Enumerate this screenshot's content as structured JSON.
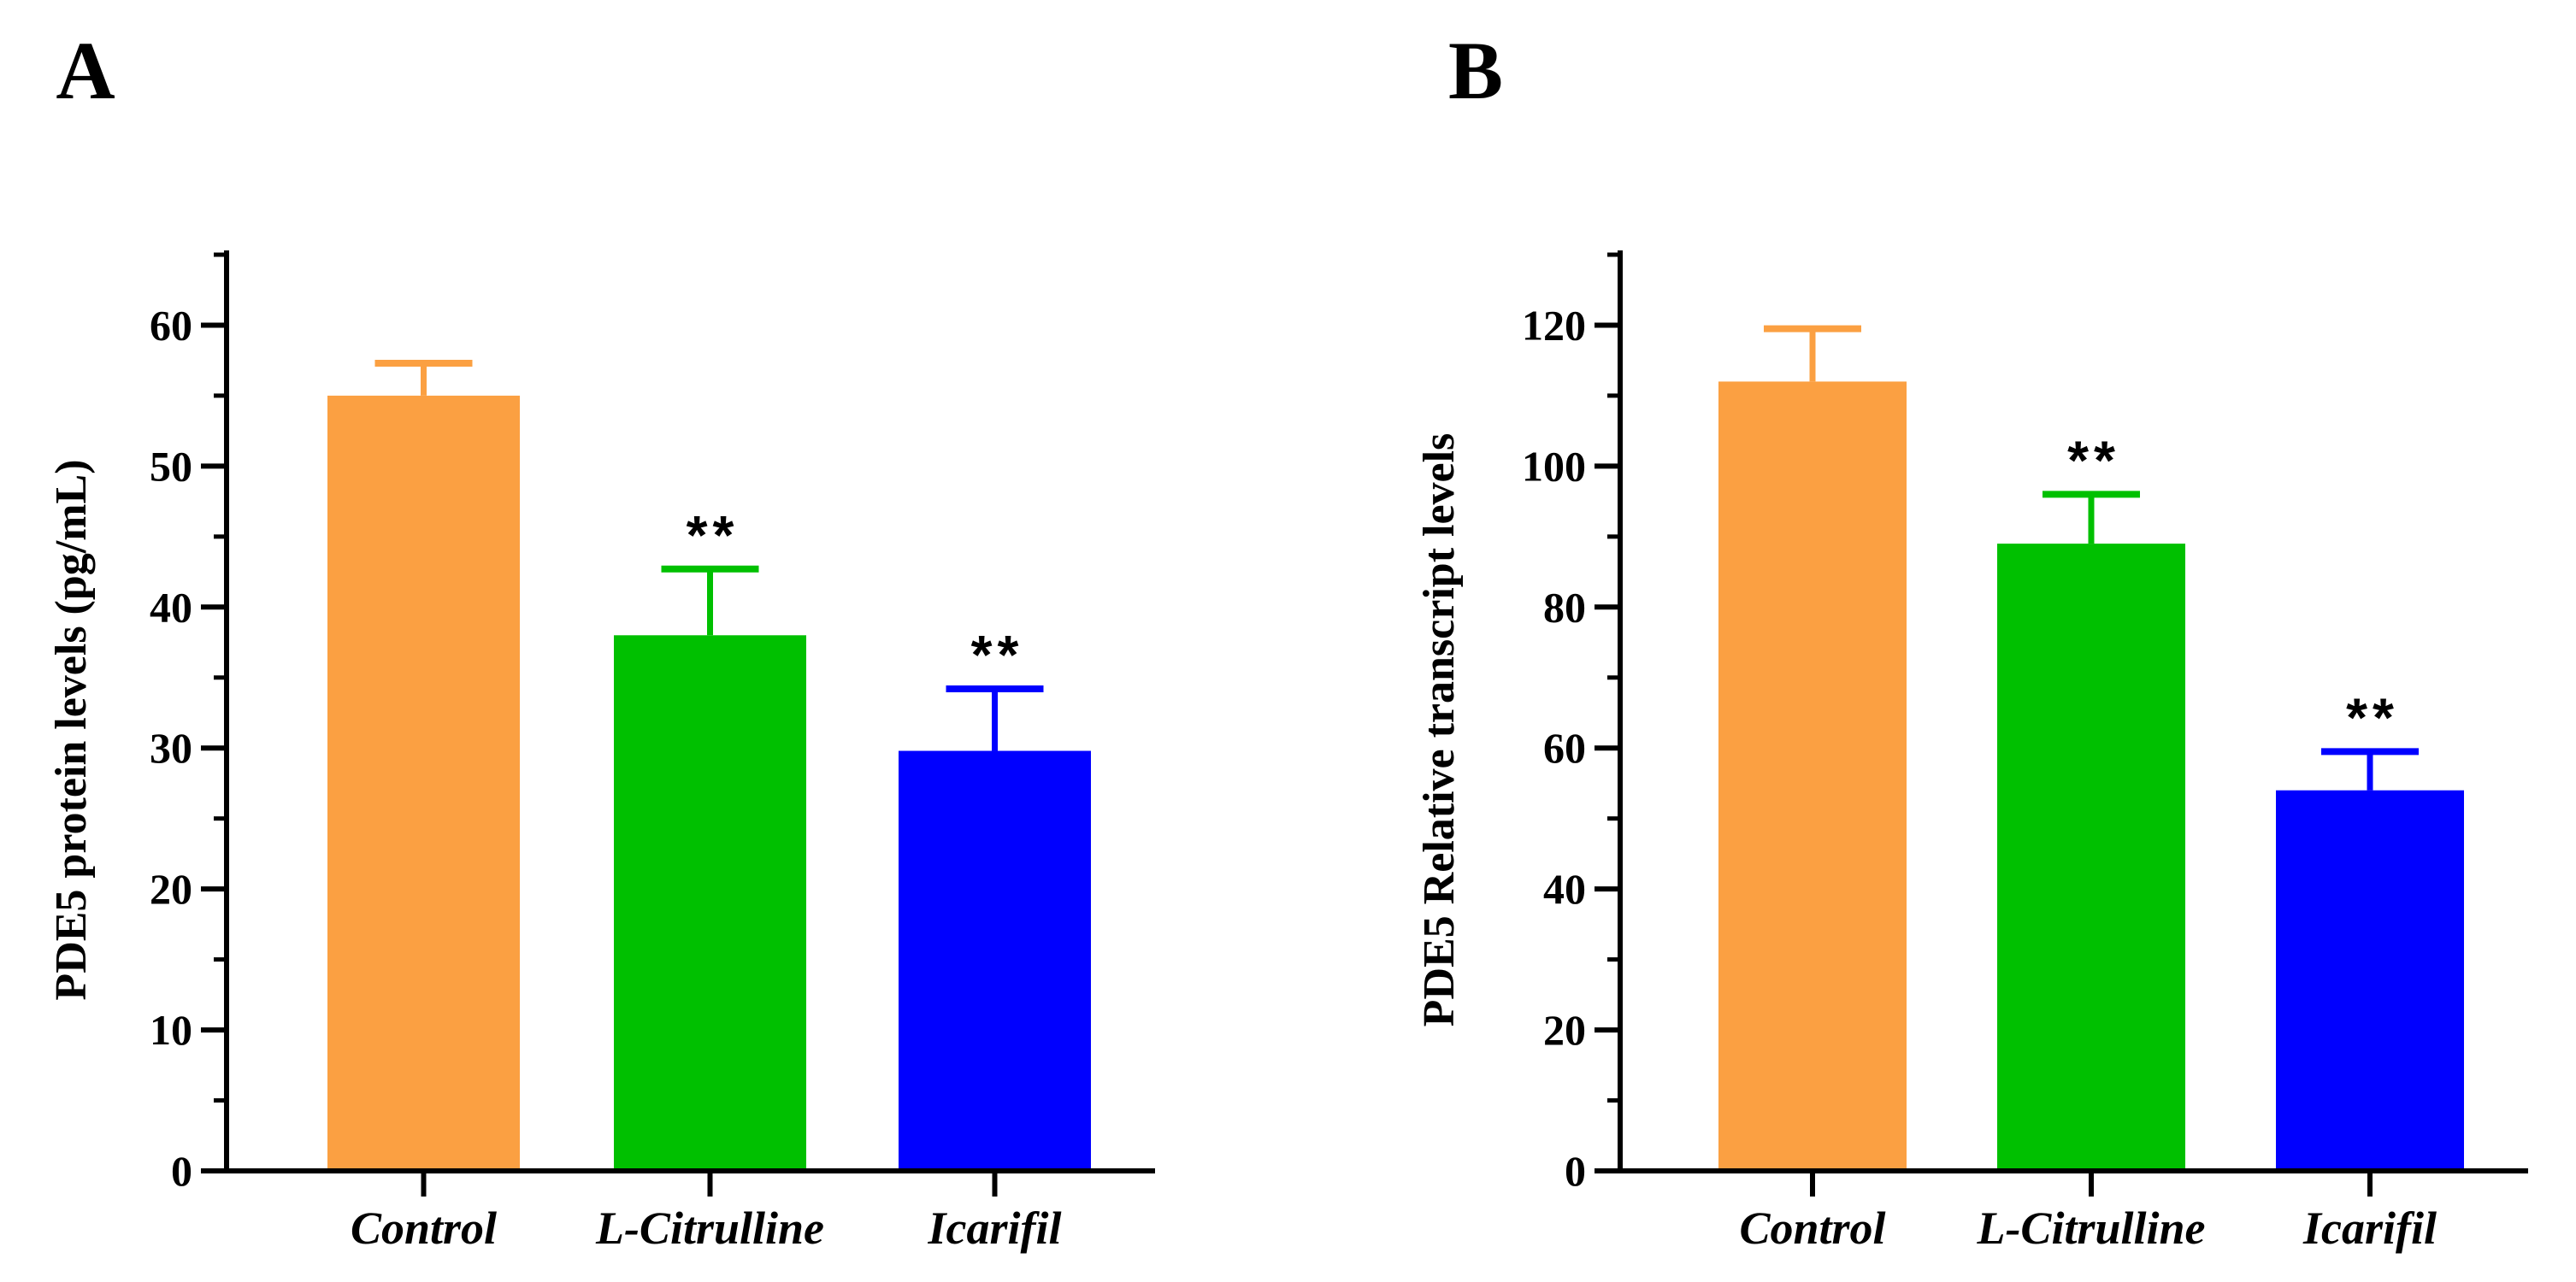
{
  "chart_data": [
    {
      "type": "bar",
      "panel_label": "A",
      "categories": [
        "Control",
        "L-Citrulline",
        "Icarifil"
      ],
      "values": [
        55,
        38,
        29.8
      ],
      "errors": [
        2.3,
        4.7,
        4.4
      ],
      "significance": [
        "",
        "**",
        "**"
      ],
      "colors": [
        "#FBA042",
        "#00C000",
        "#0000FF"
      ],
      "ylabel": "PDE5 protein levels (pg/mL)",
      "ylim": [
        0,
        65
      ],
      "yticks": [
        0,
        10,
        20,
        30,
        40,
        50,
        60
      ],
      "minor_tick_step": 5,
      "legend": "none",
      "grid": false
    },
    {
      "type": "bar",
      "panel_label": "B",
      "categories": [
        "Control",
        "L-Citrulline",
        "Icarifil"
      ],
      "values": [
        112,
        89,
        54
      ],
      "errors": [
        7.5,
        7,
        5.5
      ],
      "significance": [
        "",
        "**",
        "**"
      ],
      "colors": [
        "#FBA042",
        "#00C000",
        "#0000FF"
      ],
      "ylabel": "PDE5 Relative transcript levels",
      "ylim": [
        0,
        130
      ],
      "yticks": [
        0,
        20,
        40,
        60,
        80,
        100,
        120
      ],
      "minor_tick_step": 10,
      "legend": "none",
      "grid": false
    }
  ]
}
